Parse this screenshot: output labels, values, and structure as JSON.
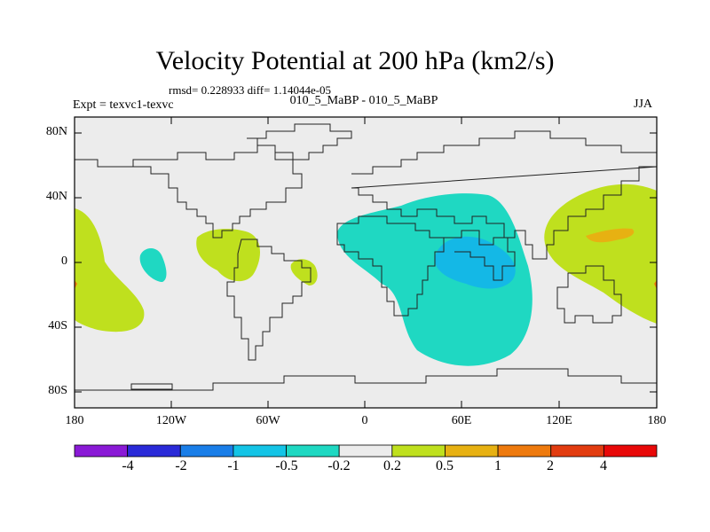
{
  "title": "Velocity Potential at 200 hPa (km2/s)",
  "stats": "rmsd= 0.228933 diff= 1.14044e-05",
  "expt": "Expt = texvc1-texvc",
  "case_label": "010_5_MaBP - 010_5_MaBP",
  "season": "JJA",
  "y_axis_labels": [
    "80N",
    "40N",
    "0",
    "40S",
    "80S"
  ],
  "x_axis_labels": [
    "180",
    "120W",
    "60W",
    "0",
    "60E",
    "120E",
    "180"
  ],
  "colorbar": {
    "labels": [
      "-4",
      "-2",
      "-1",
      "-0.5",
      "-0.2",
      "0.2",
      "0.5",
      "1",
      "2",
      "4"
    ],
    "colors": [
      "#8a1ad6",
      "#2a2ad8",
      "#1a7ee8",
      "#14c4e6",
      "#1fd8c2",
      "#ececec",
      "#bfe01e",
      "#e7b112",
      "#ee7a0e",
      "#e23c10",
      "#e80808"
    ]
  },
  "colors": {
    "ocean": "#ececec",
    "cyan": "#1fd8c2",
    "blue": "#14b8e6",
    "yellowgreen": "#bfe01e",
    "orange": "#e7b112"
  }
}
